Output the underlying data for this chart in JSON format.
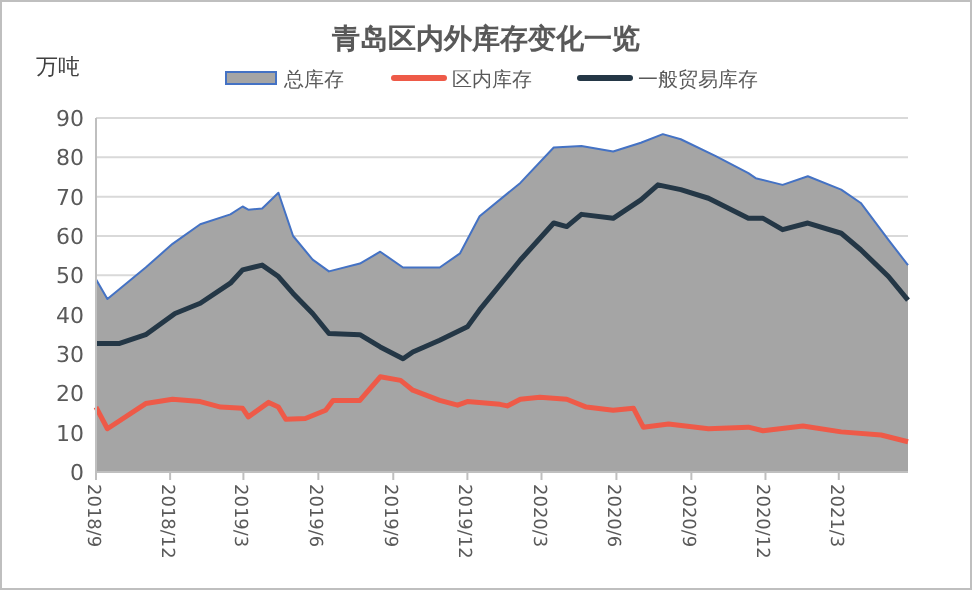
{
  "chart_data": {
    "type": "line",
    "title": "青岛区内外库存变化一览",
    "ylabel": "万吨",
    "series": [
      {
        "name": "总库存",
        "type": "area",
        "color": "#a5a5a5",
        "x": [
          "2018-09-01",
          "2018-09-15",
          "2018-11-01",
          "2018-12-04",
          "2019-01-07",
          "2019-02-13",
          "2019-02-28",
          "2019-03-07",
          "2019-03-24",
          "2019-04-13",
          "2019-05-01",
          "2019-05-25",
          "2019-06-14",
          "2019-07-22",
          "2019-08-16",
          "2019-09-13",
          "2019-09-25",
          "2019-10-28",
          "2019-11-22",
          "2019-12-16",
          "2020-02-04",
          "2020-03-16",
          "2020-04-19",
          "2020-05-28",
          "2020-07-01",
          "2020-07-28",
          "2020-08-19",
          "2020-10-01",
          "2020-11-10",
          "2020-11-19",
          "2020-12-22",
          "2021-01-22",
          "2021-03-04",
          "2021-03-28",
          "2021-05-01",
          "2021-05-25"
        ],
        "values": [
          49,
          44,
          52,
          58,
          63,
          65.5,
          67.5,
          66.7,
          67,
          71,
          60,
          54,
          51,
          53,
          56,
          52,
          52,
          52,
          55.6,
          65,
          73.5,
          82.5,
          82.9,
          81.5,
          83.7,
          85.9,
          84.6,
          80.3,
          76,
          74.7,
          73,
          75.2,
          71.8,
          68.4,
          59,
          52.6
        ]
      },
      {
        "name": "区内库存",
        "color": "#ee5a48",
        "x": [
          "2018-09-01",
          "2018-09-15",
          "2018-11-01",
          "2018-12-04",
          "2019-01-07",
          "2019-02-01",
          "2019-02-28",
          "2019-03-07",
          "2019-04-01",
          "2019-04-13",
          "2019-04-22",
          "2019-05-16",
          "2019-06-10",
          "2019-06-19",
          "2019-07-22",
          "2019-08-04",
          "2019-08-16",
          "2019-09-10",
          "2019-09-25",
          "2019-10-28",
          "2019-11-19",
          "2019-12-01",
          "2020-01-10",
          "2020-01-19",
          "2020-02-04",
          "2020-02-28",
          "2020-04-01",
          "2020-04-25",
          "2020-05-28",
          "2020-06-22",
          "2020-07-04",
          "2020-08-04",
          "2020-09-22",
          "2020-11-10",
          "2020-11-28",
          "2021-01-16",
          "2021-03-04",
          "2021-04-22",
          "2021-05-25"
        ],
        "values": [
          16.5,
          11,
          17.4,
          18.5,
          17.9,
          16.5,
          16.2,
          14,
          17.7,
          16.5,
          13.4,
          13.6,
          15.7,
          18.2,
          18.2,
          21.3,
          24.2,
          23.3,
          20.8,
          18.2,
          17,
          17.9,
          17.2,
          16.8,
          18.5,
          19,
          18.5,
          16.5,
          15.7,
          16.2,
          11.4,
          12.2,
          11,
          11.4,
          10.5,
          11.7,
          10.2,
          9.4,
          7.7
        ]
      },
      {
        "name": "一般贸易库存",
        "color": "#243746",
        "x": [
          "2018-09-01",
          "2018-09-30",
          "2018-11-01",
          "2018-12-07",
          "2019-01-07",
          "2019-02-13",
          "2019-02-28",
          "2019-03-24",
          "2019-04-13",
          "2019-05-01",
          "2019-05-25",
          "2019-06-14",
          "2019-07-22",
          "2019-08-16",
          "2019-09-13",
          "2019-09-25",
          "2019-10-28",
          "2019-12-01",
          "2019-12-16",
          "2020-02-04",
          "2020-03-16",
          "2020-04-01",
          "2020-04-19",
          "2020-05-28",
          "2020-07-01",
          "2020-07-22",
          "2020-08-19",
          "2020-09-22",
          "2020-11-10",
          "2020-11-28",
          "2020-12-22",
          "2021-01-22",
          "2021-03-04",
          "2021-03-28",
          "2021-05-01",
          "2021-05-25"
        ],
        "values": [
          32.7,
          32.7,
          34.9,
          40.3,
          42.9,
          48,
          51.4,
          52.6,
          49.7,
          45.4,
          40.3,
          35.2,
          34.9,
          31.8,
          28.8,
          30.5,
          33.5,
          36.9,
          41.2,
          53.9,
          63.3,
          62.4,
          65.5,
          64.5,
          69.2,
          73,
          71.8,
          69.6,
          64.5,
          64.5,
          61.6,
          63.3,
          60.7,
          56.5,
          49.7,
          43.7
        ]
      }
    ],
    "xlim": [
      "2018-09-01",
      "2021-05-25"
    ],
    "xticks": [
      {
        "value": "2018-09-01",
        "label": "2018/9"
      },
      {
        "value": "2018-12-01",
        "label": "2018/12"
      },
      {
        "value": "2019-03-01",
        "label": "2019/3"
      },
      {
        "value": "2019-06-01",
        "label": "2019/6"
      },
      {
        "value": "2019-09-01",
        "label": "2019/9"
      },
      {
        "value": "2019-12-01",
        "label": "2019/12"
      },
      {
        "value": "2020-03-01",
        "label": "2020/3"
      },
      {
        "value": "2020-06-01",
        "label": "2020/6"
      },
      {
        "value": "2020-09-01",
        "label": "2020/9"
      },
      {
        "value": "2020-12-01",
        "label": "2020/12"
      },
      {
        "value": "2021-03-01",
        "label": "2021/3"
      }
    ],
    "ylim": [
      0,
      90
    ],
    "yticks": [
      0,
      10,
      20,
      30,
      40,
      50,
      60,
      70,
      80,
      90
    ],
    "grid": "y",
    "legend": "top",
    "marker": "none",
    "line_style": "solid"
  }
}
